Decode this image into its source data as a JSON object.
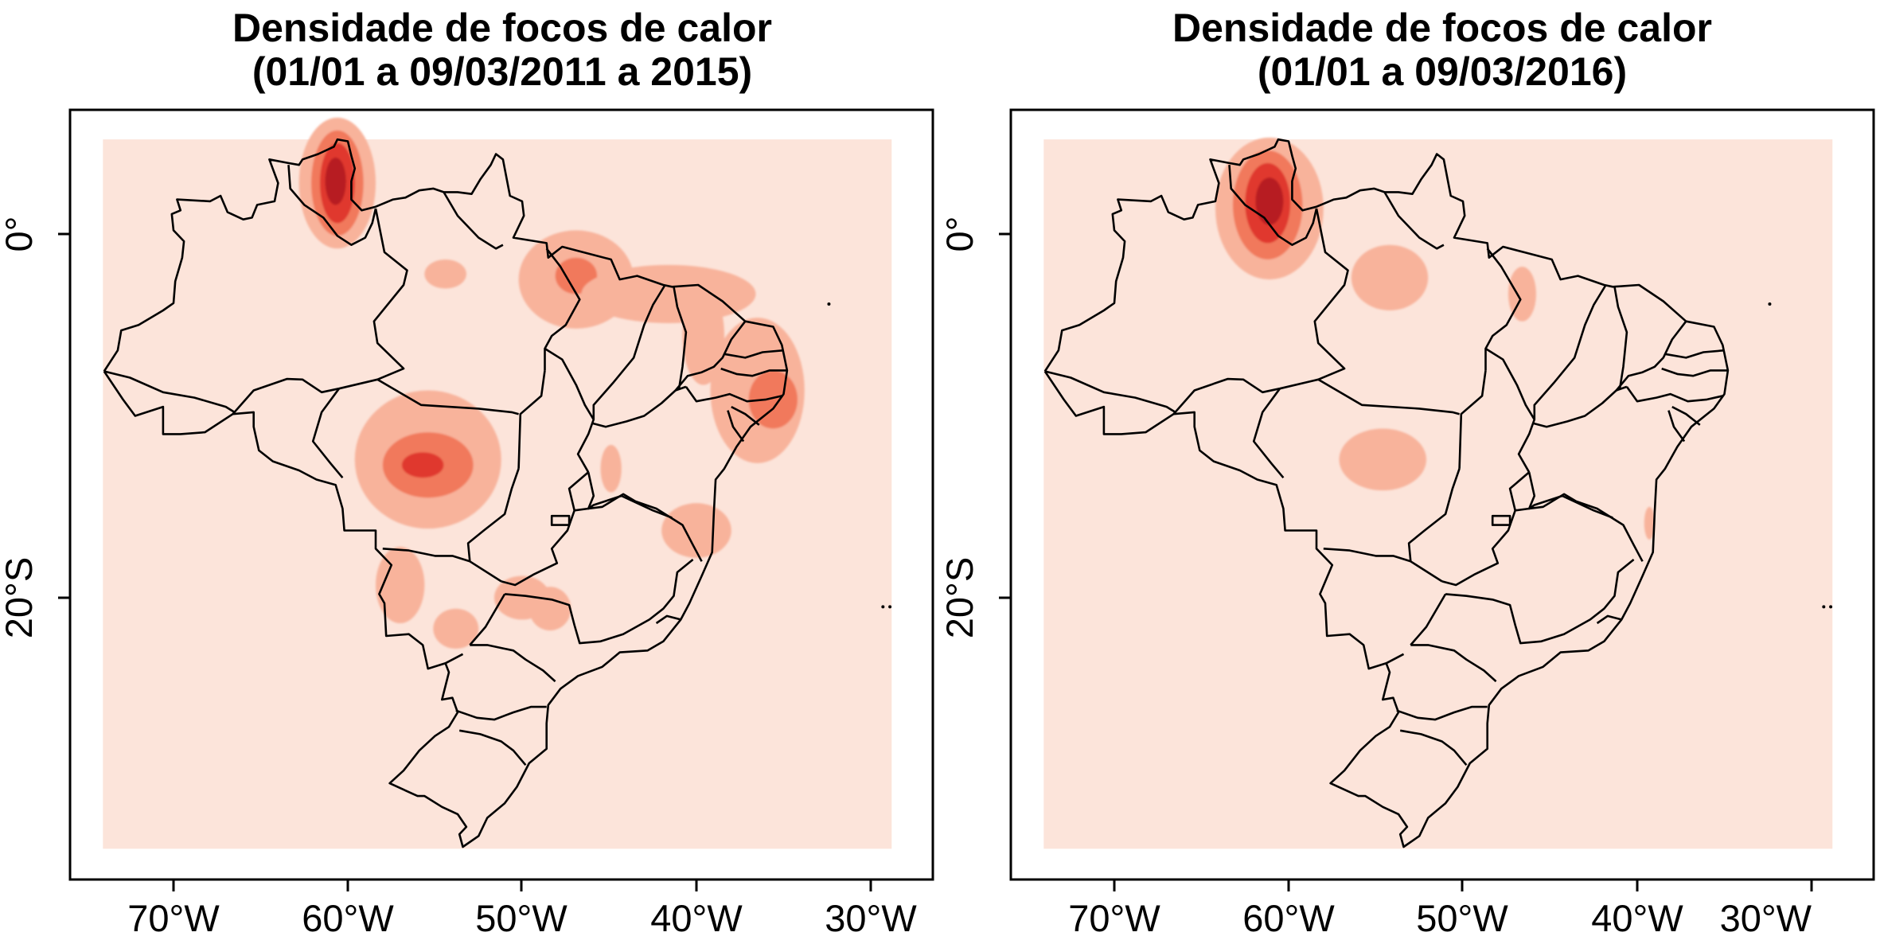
{
  "colors": {
    "background": "#fce4da",
    "level1": "#f8b39b",
    "level2": "#f1795c",
    "level3": "#e0382d",
    "level4": "#b71e23",
    "outline": "#000000"
  },
  "panels": [
    {
      "title_line1": "Densidade de focos de calor",
      "title_line2": "(01/01 a 09/03/2011 a 2015)",
      "x_ticks": [
        "70°W",
        "60°W",
        "50°W",
        "40°W",
        "30°W"
      ],
      "y_ticks": [
        "0°",
        "20°S"
      ],
      "density_blobs": [
        {
          "lon": -60.6,
          "lat": 2.8,
          "rx": 2.2,
          "ry": 3.6,
          "level": 1
        },
        {
          "lon": -60.6,
          "lat": 2.8,
          "rx": 1.5,
          "ry": 2.9,
          "level": 2
        },
        {
          "lon": -60.6,
          "lat": 2.8,
          "rx": 1.0,
          "ry": 2.2,
          "level": 3
        },
        {
          "lon": -60.7,
          "lat": 2.9,
          "rx": 0.6,
          "ry": 1.3,
          "level": 4
        },
        {
          "lon": -54.4,
          "lat": -2.2,
          "rx": 1.2,
          "ry": 0.8,
          "level": 1
        },
        {
          "lon": -46.9,
          "lat": -2.5,
          "rx": 3.3,
          "ry": 2.7,
          "level": 1
        },
        {
          "lon": -46.9,
          "lat": -2.3,
          "rx": 1.2,
          "ry": 1.0,
          "level": 2
        },
        {
          "lon": -41.6,
          "lat": -3.3,
          "rx": 5.0,
          "ry": 1.6,
          "level": 1
        },
        {
          "lon": -39.6,
          "lat": -5.6,
          "rx": 1.2,
          "ry": 2.7,
          "level": 1
        },
        {
          "lon": -36.5,
          "lat": -8.6,
          "rx": 2.7,
          "ry": 4.0,
          "level": 1
        },
        {
          "lon": -35.6,
          "lat": -9.1,
          "rx": 1.4,
          "ry": 1.6,
          "level": 2
        },
        {
          "lon": -55.4,
          "lat": -12.4,
          "rx": 4.2,
          "ry": 3.8,
          "level": 1
        },
        {
          "lon": -55.4,
          "lat": -12.7,
          "rx": 2.6,
          "ry": 1.8,
          "level": 2
        },
        {
          "lon": -55.7,
          "lat": -12.7,
          "rx": 1.2,
          "ry": 0.7,
          "level": 3
        },
        {
          "lon": -44.9,
          "lat": -12.9,
          "rx": 0.6,
          "ry": 1.3,
          "level": 1
        },
        {
          "lon": -40.0,
          "lat": -16.3,
          "rx": 2.0,
          "ry": 1.5,
          "level": 1
        },
        {
          "lon": -57.0,
          "lat": -19.3,
          "rx": 1.4,
          "ry": 2.1,
          "level": 1
        },
        {
          "lon": -53.8,
          "lat": -21.7,
          "rx": 1.3,
          "ry": 1.1,
          "level": 1
        },
        {
          "lon": -50.0,
          "lat": -20.0,
          "rx": 1.6,
          "ry": 1.2,
          "level": 1
        },
        {
          "lon": -48.4,
          "lat": -20.6,
          "rx": 1.2,
          "ry": 1.2,
          "level": 1
        }
      ]
    },
    {
      "title_line1": "Densidade de focos de calor",
      "title_line2": "(01/01 a 09/03/2016)",
      "x_ticks": [
        "70°W",
        "60°W",
        "50°W",
        "40°W",
        "30°W"
      ],
      "y_ticks": [
        "0°",
        "20°S"
      ],
      "density_blobs": [
        {
          "lon": -61.1,
          "lat": 1.4,
          "rx": 3.1,
          "ry": 3.9,
          "level": 1
        },
        {
          "lon": -61.2,
          "lat": 1.6,
          "rx": 2.0,
          "ry": 3.0,
          "level": 2
        },
        {
          "lon": -61.2,
          "lat": 1.7,
          "rx": 1.3,
          "ry": 2.2,
          "level": 3
        },
        {
          "lon": -61.1,
          "lat": 1.8,
          "rx": 0.8,
          "ry": 1.3,
          "level": 4
        },
        {
          "lon": -54.2,
          "lat": -2.4,
          "rx": 2.2,
          "ry": 1.8,
          "level": 1
        },
        {
          "lon": -46.6,
          "lat": -3.3,
          "rx": 0.8,
          "ry": 1.5,
          "level": 1
        },
        {
          "lon": -54.6,
          "lat": -12.4,
          "rx": 2.5,
          "ry": 1.7,
          "level": 1
        },
        {
          "lon": -39.3,
          "lat": -15.9,
          "rx": 0.3,
          "ry": 0.9,
          "level": 1
        }
      ]
    }
  ]
}
